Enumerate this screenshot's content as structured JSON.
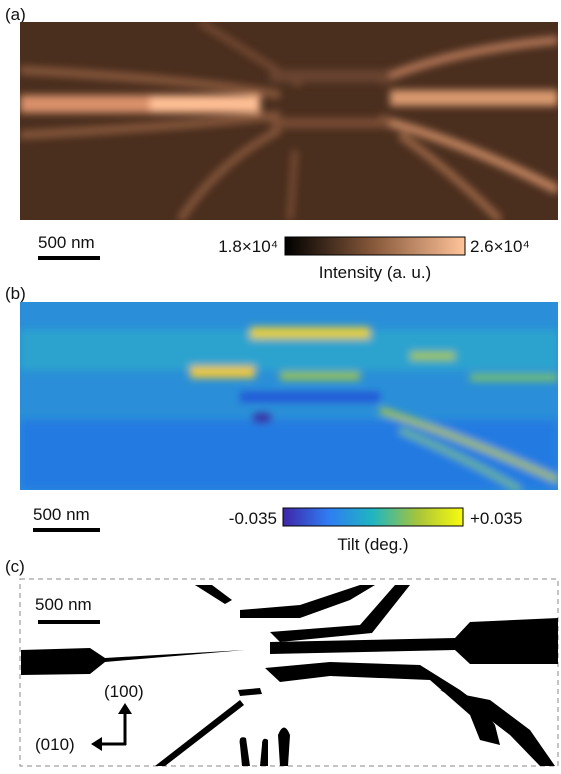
{
  "panels": [
    {
      "label": "(a)",
      "scale_bar": "500 nm",
      "colorbar": {
        "min_label": "1.8×10⁴",
        "max_label": "2.6×10⁴",
        "title": "Intensity (a. u.)"
      }
    },
    {
      "label": "(b)",
      "scale_bar": "500 nm",
      "colorbar": {
        "min_label": "-0.035",
        "max_label": "+0.035",
        "title": "Tilt (deg.)"
      }
    },
    {
      "label": "(c)",
      "scale_bar": "500 nm",
      "axes": {
        "vertical": "(100)",
        "horizontal": "(010)"
      }
    }
  ]
}
